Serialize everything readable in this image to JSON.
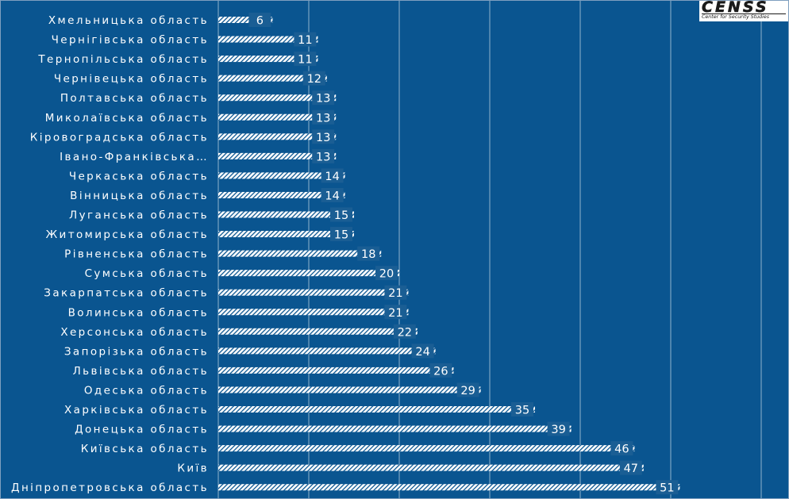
{
  "chart_data": {
    "type": "bar",
    "orientation": "horizontal",
    "categories": [
      "Хмельницька область",
      "Чернігівська область",
      "Тернопільська область",
      "Чернівецька область",
      "Полтавська область",
      "Миколаївська область",
      "Кіровоградська область",
      "Івано-Франківська…",
      "Черкаська область",
      "Вінницька область",
      "Луганська область",
      "Житомирська область",
      "Рівненська область",
      "Сумська область",
      "Закарпатська область",
      "Волинська область",
      "Херсонська область",
      "Запорізька область",
      "Львівська область",
      "Одеська область",
      "Харківська область",
      "Донецька область",
      "Київська область",
      "Київ",
      "Дніпропетровська область"
    ],
    "values": [
      6,
      11,
      11,
      12,
      13,
      13,
      13,
      13,
      14,
      14,
      15,
      15,
      18,
      20,
      21,
      21,
      22,
      24,
      26,
      29,
      35,
      39,
      46,
      47,
      51
    ],
    "xlim": [
      0,
      60
    ],
    "grid": true,
    "title": "",
    "xlabel": "",
    "ylabel": ""
  },
  "colors": {
    "background": "#0a5590",
    "bar": "#ffffff",
    "label_box": "#1a5e94",
    "text": "#ffffff"
  },
  "logo": {
    "name": "CENSS",
    "subtitle": "Center for Security Studies"
  }
}
